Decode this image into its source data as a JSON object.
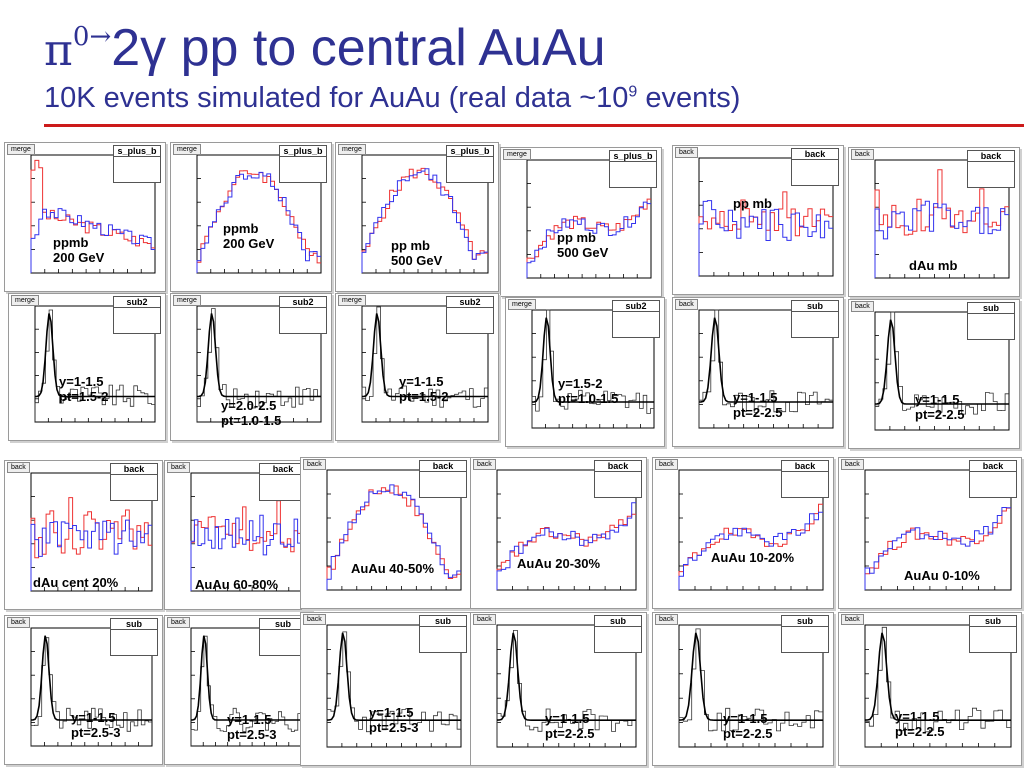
{
  "slide": {
    "title_pi": "π",
    "title_sup": "0→",
    "title_rest": "2γ pp to central AuAu",
    "subtitle_pre": "10K events simulated for AuAu (real data ~10",
    "subtitle_sup": "9",
    "subtitle_post": " events)"
  },
  "colors": {
    "title": "#2e3192",
    "rule": "#cc1a1a",
    "red_hist": "#ee3333",
    "blue_hist": "#3333ee"
  },
  "panels": [
    {
      "type": "overlay",
      "tag": "merge",
      "stat": "s_plus_b",
      "label": "ppmb\n200 GeV",
      "shape": "peakfall"
    },
    {
      "type": "overlay",
      "tag": "merge",
      "stat": "s_plus_b",
      "label": "ppmb\n200 GeV",
      "shape": "hump"
    },
    {
      "type": "overlay",
      "tag": "merge",
      "stat": "s_plus_b",
      "label": "pp mb\n500 GeV",
      "shape": "hump"
    },
    {
      "type": "overlay",
      "tag": "merge",
      "stat": "s_plus_b",
      "label": "pp mb\n500 GeV",
      "shape": "rise"
    },
    {
      "type": "overlay",
      "tag": "back",
      "stat": "back",
      "label": "pp mb",
      "shape": "noisy"
    },
    {
      "type": "overlay",
      "tag": "back",
      "stat": "back",
      "label": "dAu mb",
      "shape": "noisy"
    },
    {
      "type": "fit",
      "tag": "merge",
      "stat": "sub2",
      "label": "y=1-1.5\npt=1.5-2"
    },
    {
      "type": "fit",
      "tag": "merge",
      "stat": "sub2",
      "label": "y=2.0-2.5\npt=1.0-1.5"
    },
    {
      "type": "fit",
      "tag": "merge",
      "stat": "sub2",
      "label": "y=1-1.5\npt=1.5-2"
    },
    {
      "type": "fit",
      "tag": "merge",
      "stat": "sub2",
      "label": "y=1.5-2\npt=1.0-1.5"
    },
    {
      "type": "fit",
      "tag": "back",
      "stat": "sub",
      "label": "y=1-1.5\npt=2-2.5"
    },
    {
      "type": "fit",
      "tag": "back",
      "stat": "sub",
      "label": "y=1-1.5\npt=2-2.5"
    },
    {
      "type": "overlay",
      "tag": "back",
      "stat": "back",
      "label": "dAu cent 20%",
      "shape": "noisy"
    },
    {
      "type": "overlay",
      "tag": "back",
      "stat": "back",
      "label": "AuAu 60-80%",
      "shape": "noisy"
    },
    {
      "type": "overlay",
      "tag": "back",
      "stat": "back",
      "label": "AuAu 40-50%",
      "shape": "hump"
    },
    {
      "type": "overlay",
      "tag": "back",
      "stat": "back",
      "label": "AuAu 20-30%",
      "shape": "rise"
    },
    {
      "type": "overlay",
      "tag": "back",
      "stat": "back",
      "label": "AuAu 10-20%",
      "shape": "rise"
    },
    {
      "type": "overlay",
      "tag": "back",
      "stat": "back",
      "label": "AuAu 0-10%",
      "shape": "rise"
    },
    {
      "type": "fit",
      "tag": "back",
      "stat": "sub",
      "label": "y=1-1.5\npt=2.5-3"
    },
    {
      "type": "fit",
      "tag": "back",
      "stat": "sub",
      "label": "y=1-1.5\npt=2.5-3"
    },
    {
      "type": "fit",
      "tag": "back",
      "stat": "sub",
      "label": "y=1-1.5\npt=2.5-3"
    },
    {
      "type": "fit",
      "tag": "back",
      "stat": "sub",
      "label": "y=1-1.5\npt=2-2.5"
    },
    {
      "type": "fit",
      "tag": "back",
      "stat": "sub",
      "label": "y=1-1.5\npt=2-2.5"
    },
    {
      "type": "fit",
      "tag": "back",
      "stat": "sub",
      "label": "y=1-1.5\npt=2-2.5"
    }
  ]
}
